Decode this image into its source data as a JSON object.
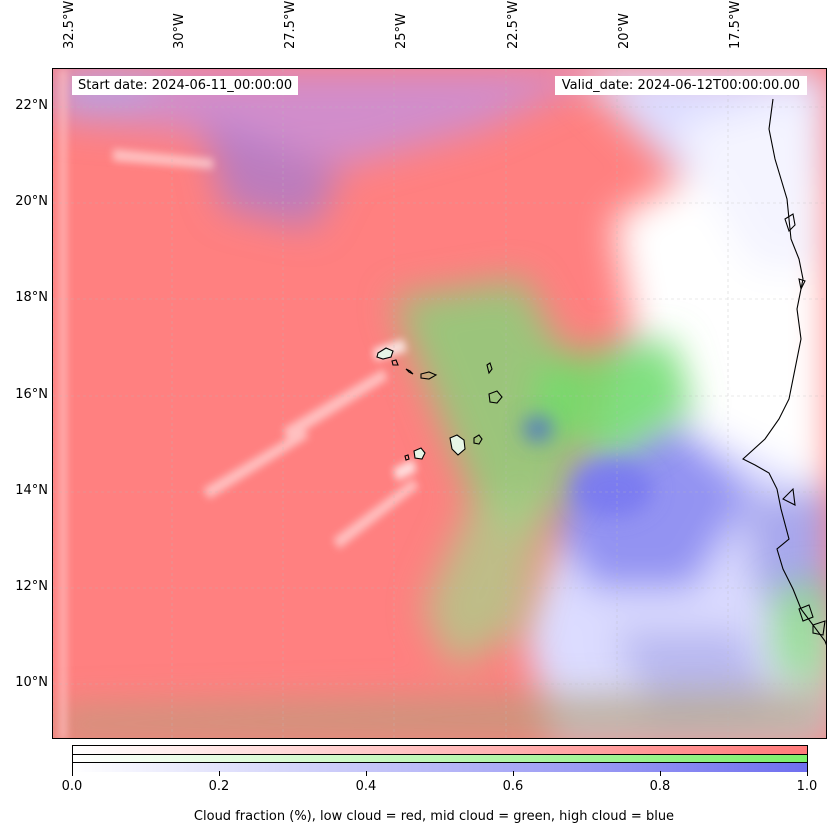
{
  "header": {
    "start_date": "Start date: 2024-06-11_00:00:00",
    "valid_date": "Valid_date: 2024-06-12T00:00:00.00"
  },
  "map": {
    "projection": "lat-lon",
    "lon_labels": [
      "32.5°W",
      "30°W",
      "27.5°W",
      "25°W",
      "22.5°W",
      "20°W",
      "17.5°W"
    ],
    "lat_labels": [
      "22°N",
      "20°N",
      "18°N",
      "16°N",
      "14°N",
      "12°N",
      "10°N"
    ],
    "layers": {
      "low_cloud_color": "#ff7a7a",
      "mid_cloud_color": "#7cf06a",
      "high_cloud_color": "#6f6fef",
      "coastline_color": "#000000"
    },
    "features": [
      "Cape Verde islands",
      "West African coastline"
    ]
  },
  "colorbar": {
    "ticks": [
      "0.0",
      "0.2",
      "0.4",
      "0.6",
      "0.8",
      "1.0"
    ],
    "title": "Cloud fraction (%), low cloud = red, mid cloud = green, high cloud = blue"
  }
}
